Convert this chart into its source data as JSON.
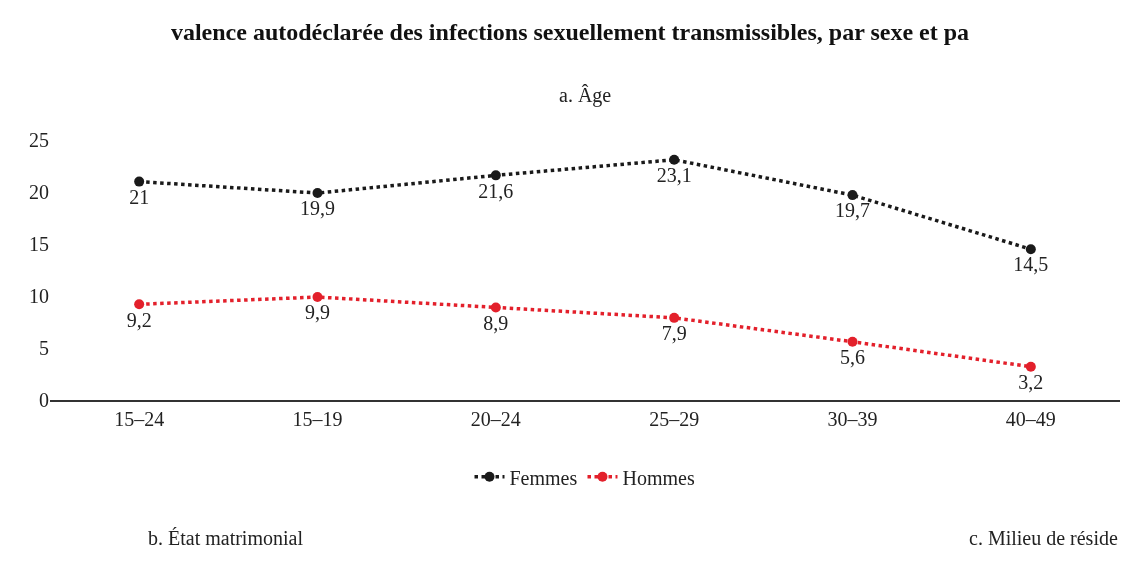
{
  "chart_data": {
    "type": "line",
    "title": "valence autodéclarée des infections sexuellement transmissibles, par sexe et pa",
    "subtitle": "a. Âge",
    "categories": [
      "15–24",
      "15–19",
      "20–24",
      "25–29",
      "30–39",
      "40–49"
    ],
    "series": [
      {
        "name": "Femmes",
        "color": "#1a1a1a",
        "values": [
          21,
          19.9,
          21.6,
          23.1,
          19.7,
          14.5
        ],
        "value_labels": [
          "21",
          "19,9",
          "21,6",
          "23,1",
          "19,7",
          "14,5"
        ]
      },
      {
        "name": "Hommes",
        "color": "#e3202b",
        "values": [
          9.2,
          9.9,
          8.9,
          7.9,
          5.6,
          3.2
        ],
        "value_labels": [
          "9,2",
          "9,9",
          "8,9",
          "7,9",
          "5,6",
          "3,2"
        ]
      }
    ],
    "ylim": [
      0,
      25
    ],
    "yticks": [
      0,
      5,
      10,
      15,
      20,
      25
    ],
    "legend": "bottom",
    "marker": "circle",
    "line_style": "dotted",
    "annotations": [
      "b. État matrimonial",
      "c. Milieu de réside"
    ]
  }
}
